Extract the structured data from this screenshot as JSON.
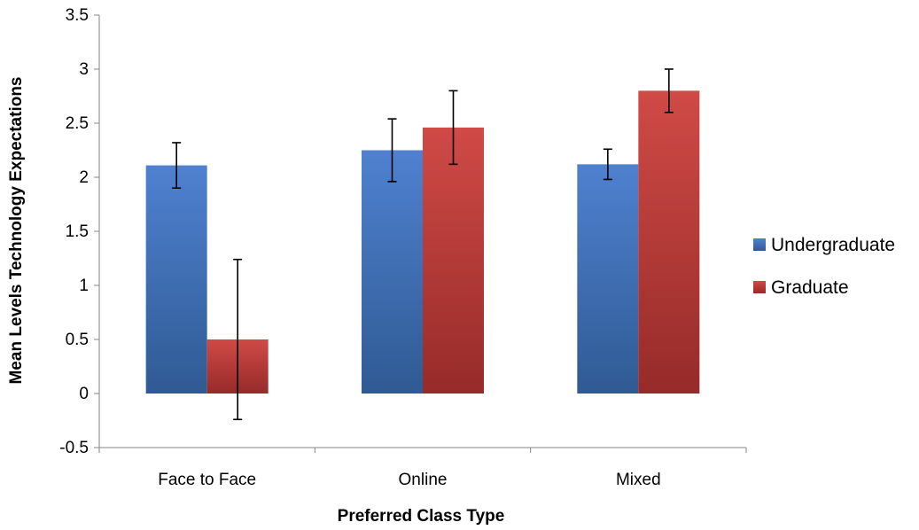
{
  "chart_data": {
    "type": "bar",
    "title": "",
    "xlabel": "Preferred Class Type",
    "ylabel": "Mean Levels Technology Expectations",
    "categories": [
      "Face to Face",
      "Online",
      "Mixed"
    ],
    "ylim": [
      -0.5,
      3.5
    ],
    "yticks": [
      "-0.5",
      "0",
      "0.5",
      "1",
      "1.5",
      "2",
      "2.5",
      "3",
      "3.5"
    ],
    "grid": false,
    "legend_position": "right",
    "series": [
      {
        "name": "Undergraduate",
        "color": "#4472C4",
        "values": [
          2.11,
          2.25,
          2.12
        ],
        "error": [
          0.21,
          0.29,
          0.14
        ]
      },
      {
        "name": "Graduate",
        "color": "#C0504D",
        "values": [
          0.5,
          2.46,
          2.8
        ],
        "error": [
          0.74,
          0.34,
          0.2
        ]
      }
    ]
  }
}
